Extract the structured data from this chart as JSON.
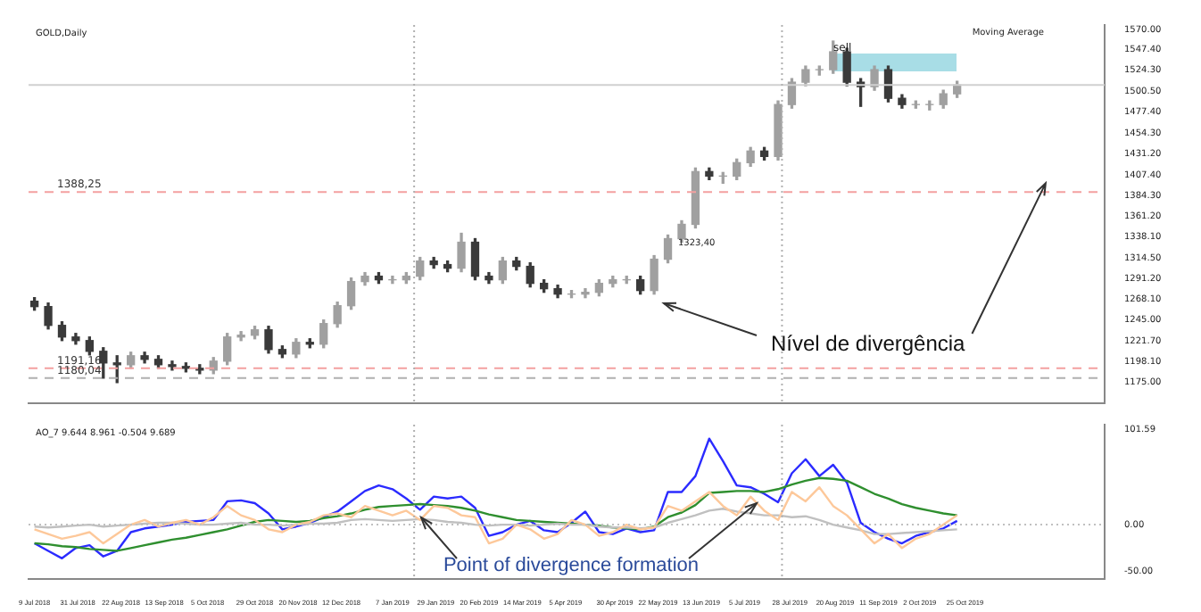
{
  "chart_data": [
    {
      "type": "candlestick",
      "title": "GOLD,Daily",
      "colors": [
        "#3a3a3a",
        "#3a3a3a",
        "#3a3a3a",
        "#3a3a3a",
        "#3a3a3a",
        "#3a3a3a",
        "#3a3a3a",
        "#a0a0a0",
        "#3a3a3a",
        "#3a3a3a",
        "#3a3a3a",
        "#3a3a3a",
        "#3a3a3a",
        "#a0a0a0",
        "#a0a0a0",
        "#a0a0a0",
        "#a0a0a0",
        "#3a3a3a",
        "#3a3a3a",
        "#a0a0a0",
        "#3a3a3a",
        "#a0a0a0",
        "#a0a0a0",
        "#a0a0a0",
        "#a0a0a0",
        "#3a3a3a",
        "#a0a0a0",
        "#a0a0a0",
        "#a0a0a0",
        "#3a3a3a",
        "#3a3a3a",
        "#a0a0a0",
        "#3a3a3a",
        "#3a3a3a",
        "#a0a0a0",
        "#3a3a3a",
        "#3a3a3a",
        "#3a3a3a",
        "#3a3a3a",
        "#a0a0a0",
        "#a0a0a0",
        "#a0a0a0",
        "#a0a0a0",
        "#a0a0a0",
        "#3a3a3a",
        "#a0a0a0",
        "#a0a0a0",
        "#a0a0a0",
        "#a0a0a0",
        "#3a3a3a",
        "#a0a0a0",
        "#a0a0a0",
        "#a0a0a0",
        "#3a3a3a",
        "#a0a0a0",
        "#a0a0a0",
        "#a0a0a0",
        "#a0a0a0",
        "#a0a0a0",
        "#3a3a3a",
        "#3a3a3a",
        "#a0a0a0",
        "#3a3a3a",
        "#3a3a3a",
        "#a0a0a0",
        "#a0a0a0",
        "#a0a0a0",
        "#a0a0a0"
      ],
      "x": [
        "2018-07-09",
        "2018-07-16",
        "2018-07-23",
        "2018-07-30",
        "2018-08-06",
        "2018-08-13",
        "2018-08-20",
        "2018-08-27",
        "2018-09-03",
        "2018-09-10",
        "2018-09-17",
        "2018-09-24",
        "2018-10-01",
        "2018-10-08",
        "2018-10-15",
        "2018-10-22",
        "2018-10-29",
        "2018-11-05",
        "2018-11-12",
        "2018-11-19",
        "2018-11-26",
        "2018-12-03",
        "2018-12-10",
        "2018-12-17",
        "2018-12-24",
        "2018-12-31",
        "2019-01-07",
        "2019-01-14",
        "2019-01-21",
        "2019-01-28",
        "2019-02-04",
        "2019-02-11",
        "2019-02-18",
        "2019-02-25",
        "2019-03-04",
        "2019-03-11",
        "2019-03-18",
        "2019-03-25",
        "2019-04-01",
        "2019-04-08",
        "2019-04-15",
        "2019-04-22",
        "2019-04-29",
        "2019-05-06",
        "2019-05-13",
        "2019-05-20",
        "2019-05-27",
        "2019-06-03",
        "2019-06-10",
        "2019-06-17",
        "2019-06-24",
        "2019-07-01",
        "2019-07-08",
        "2019-07-15",
        "2019-07-22",
        "2019-07-29",
        "2019-08-05",
        "2019-08-12",
        "2019-08-19",
        "2019-08-26",
        "2019-09-02",
        "2019-09-09",
        "2019-09-16",
        "2019-09-23",
        "2019-09-30",
        "2019-10-07",
        "2019-10-14",
        "2019-10-21"
      ],
      "ohlc": [
        [
          1266,
          1270,
          1256,
          1260
        ],
        [
          1260,
          1264,
          1235,
          1239
        ],
        [
          1239,
          1243,
          1222,
          1226
        ],
        [
          1226,
          1230,
          1218,
          1222
        ],
        [
          1222,
          1226,
          1206,
          1210
        ],
        [
          1210,
          1214,
          1180,
          1197
        ],
        [
          1197,
          1205,
          1175,
          1195
        ],
        [
          1195,
          1209,
          1191,
          1205
        ],
        [
          1205,
          1209,
          1197,
          1201
        ],
        [
          1201,
          1205,
          1191,
          1195
        ],
        [
          1195,
          1199,
          1189,
          1193
        ],
        [
          1193,
          1197,
          1187,
          1191
        ],
        [
          1191,
          1195,
          1185,
          1189
        ],
        [
          1189,
          1203,
          1185,
          1199
        ],
        [
          1199,
          1230,
          1195,
          1226
        ],
        [
          1226,
          1232,
          1222,
          1228
        ],
        [
          1228,
          1238,
          1224,
          1234
        ],
        [
          1234,
          1238,
          1208,
          1212
        ],
        [
          1212,
          1216,
          1203,
          1207
        ],
        [
          1207,
          1224,
          1203,
          1220
        ],
        [
          1220,
          1224,
          1214,
          1218
        ],
        [
          1218,
          1245,
          1214,
          1241
        ],
        [
          1241,
          1265,
          1237,
          1261
        ],
        [
          1261,
          1292,
          1257,
          1288
        ],
        [
          1288,
          1298,
          1284,
          1294
        ],
        [
          1294,
          1298,
          1286,
          1290
        ],
        [
          1290,
          1294,
          1286,
          1290
        ],
        [
          1290,
          1298,
          1286,
          1294
        ],
        [
          1294,
          1315,
          1290,
          1311
        ],
        [
          1311,
          1315,
          1303,
          1307
        ],
        [
          1307,
          1311,
          1299,
          1303
        ],
        [
          1303,
          1342,
          1299,
          1332
        ],
        [
          1332,
          1336,
          1290,
          1294
        ],
        [
          1294,
          1298,
          1286,
          1290
        ],
        [
          1290,
          1315,
          1286,
          1311
        ],
        [
          1311,
          1315,
          1301,
          1305
        ],
        [
          1305,
          1309,
          1282,
          1286
        ],
        [
          1286,
          1290,
          1276,
          1280
        ],
        [
          1280,
          1284,
          1270,
          1274
        ],
        [
          1274,
          1278,
          1270,
          1274
        ],
        [
          1274,
          1280,
          1270,
          1276
        ],
        [
          1276,
          1290,
          1272,
          1286
        ],
        [
          1286,
          1294,
          1282,
          1290
        ],
        [
          1290,
          1294,
          1286,
          1290
        ],
        [
          1290,
          1294,
          1274,
          1278
        ],
        [
          1278,
          1317,
          1274,
          1313
        ],
        [
          1313,
          1340,
          1309,
          1336
        ],
        [
          1336,
          1356,
          1332,
          1352
        ],
        [
          1352,
          1415,
          1348,
          1411
        ],
        [
          1411,
          1415,
          1402,
          1406
        ],
        [
          1406,
          1410,
          1398,
          1406
        ],
        [
          1406,
          1425,
          1402,
          1421
        ],
        [
          1421,
          1438,
          1417,
          1434
        ],
        [
          1434,
          1438,
          1424,
          1428
        ],
        [
          1428,
          1490,
          1424,
          1486
        ],
        [
          1486,
          1515,
          1482,
          1511
        ],
        [
          1511,
          1529,
          1507,
          1525
        ],
        [
          1525,
          1529,
          1519,
          1525
        ],
        [
          1525,
          1557,
          1521,
          1545
        ],
        [
          1545,
          1549,
          1507,
          1511
        ],
        [
          1511,
          1515,
          1484,
          1506
        ],
        [
          1506,
          1529,
          1502,
          1525
        ],
        [
          1525,
          1529,
          1489,
          1493
        ],
        [
          1493,
          1497,
          1482,
          1486
        ],
        [
          1486,
          1490,
          1482,
          1486
        ],
        [
          1486,
          1490,
          1480,
          1486
        ],
        [
          1486,
          1502,
          1482,
          1498
        ],
        [
          1498,
          1512,
          1494,
          1508
        ]
      ],
      "xlim": [
        "2018-07-06",
        "2020-01-04"
      ],
      "ylim": [
        1151.9,
        1575
      ],
      "yticks": [
        {
          "value": 1175,
          "label": "1175.00"
        },
        {
          "value": 1198.1,
          "label": "1198.10"
        },
        {
          "value": 1221.7,
          "label": "1221.70"
        },
        {
          "value": 1245,
          "label": "1245.00"
        },
        {
          "value": 1268.1,
          "label": "1268.10"
        },
        {
          "value": 1291.2,
          "label": "1291.20"
        },
        {
          "value": 1314.5,
          "label": "1314.50"
        },
        {
          "value": 1338.1,
          "label": "1338.10"
        },
        {
          "value": 1361.2,
          "label": "1361.20"
        },
        {
          "value": 1384.3,
          "label": "1384.30"
        },
        {
          "value": 1407.4,
          "label": "1407.40"
        },
        {
          "value": 1431.2,
          "label": "1431.20"
        },
        {
          "value": 1454.3,
          "label": "1454.30"
        },
        {
          "value": 1477.4,
          "label": "1477.40"
        },
        {
          "value": 1500.5,
          "label": "1500.50"
        },
        {
          "value": 1524.3,
          "label": "1524.30"
        },
        {
          "value": 1547.4,
          "label": "1547.40"
        },
        {
          "value": 1570,
          "label": "1570.00"
        }
      ],
      "tick_labels": "y",
      "legend": false,
      "grid": false,
      "ref_lines": [
        {
          "axis": "y",
          "value": 1388.25,
          "label": "1388,25",
          "color": "#f4a0a0",
          "line_style": "dashed"
        },
        {
          "axis": "y",
          "value": 1191.16,
          "label": "1191,16",
          "color": "#f4a0a0",
          "line_style": "dashed"
        },
        {
          "axis": "y",
          "value": 1180.04,
          "label": "1180,04",
          "color": "#b0b0b0",
          "line_style": "dashed"
        },
        {
          "axis": "y",
          "value": 1508,
          "color": "#d0d0d0",
          "line_style": "solid"
        },
        {
          "axis": "x",
          "value": "2019-01-18",
          "color": "#b0b0b0",
          "line_style": "dotted"
        },
        {
          "axis": "x",
          "value": "2019-07-24",
          "color": "#b0b0b0",
          "line_style": "dotted"
        }
      ],
      "annotations": [
        "Moving Average",
        "1323,40",
        "sell",
        {
          "text": "Nível de divergência",
          "x": "2019-12-05",
          "y": 1398
        }
      ]
    },
    {
      "type": "line",
      "title": "AO_7 9.644 8.961 -0.504 9.689",
      "x": [
        "2018-07-09",
        "2018-07-16",
        "2018-07-23",
        "2018-07-30",
        "2018-08-06",
        "2018-08-13",
        "2018-08-20",
        "2018-08-27",
        "2018-09-03",
        "2018-09-10",
        "2018-09-17",
        "2018-09-24",
        "2018-10-01",
        "2018-10-08",
        "2018-10-15",
        "2018-10-22",
        "2018-10-29",
        "2018-11-05",
        "2018-11-12",
        "2018-11-19",
        "2018-11-26",
        "2018-12-03",
        "2018-12-10",
        "2018-12-17",
        "2018-12-24",
        "2018-12-31",
        "2019-01-07",
        "2019-01-14",
        "2019-01-21",
        "2019-01-28",
        "2019-02-04",
        "2019-02-11",
        "2019-02-18",
        "2019-02-25",
        "2019-03-04",
        "2019-03-11",
        "2019-03-18",
        "2019-03-25",
        "2019-04-01",
        "2019-04-08",
        "2019-04-15",
        "2019-04-22",
        "2019-04-29",
        "2019-05-06",
        "2019-05-13",
        "2019-05-20",
        "2019-05-27",
        "2019-06-03",
        "2019-06-10",
        "2019-06-17",
        "2019-06-24",
        "2019-07-01",
        "2019-07-08",
        "2019-07-15",
        "2019-07-22",
        "2019-07-29",
        "2019-08-05",
        "2019-08-12",
        "2019-08-19",
        "2019-08-26",
        "2019-09-02",
        "2019-09-09",
        "2019-09-16",
        "2019-09-23",
        "2019-09-30",
        "2019-10-07",
        "2019-10-14",
        "2019-10-21"
      ],
      "series": [
        {
          "color": "#fdc89a",
          "values": [
            -5,
            -10,
            -15,
            -12,
            -8,
            -20,
            -10,
            0,
            5,
            -2,
            2,
            5,
            0,
            8,
            20,
            10,
            5,
            -5,
            -8,
            0,
            3,
            10,
            12,
            8,
            20,
            15,
            10,
            15,
            5,
            20,
            18,
            10,
            8,
            -20,
            -15,
            0,
            -5,
            -15,
            -10,
            5,
            0,
            -12,
            -8,
            0,
            -5,
            -3,
            20,
            15,
            25,
            35,
            20,
            10,
            30,
            15,
            5,
            35,
            25,
            40,
            20,
            10,
            -5,
            -20,
            -10,
            -25,
            -15,
            -10,
            0,
            10
          ]
        },
        {
          "color": "#c0c0c0",
          "values": [
            -2,
            -3,
            -2,
            -1,
            0,
            -2,
            -1,
            0,
            1,
            2,
            2,
            1,
            0,
            0,
            1,
            2,
            0,
            0,
            -1,
            0,
            1,
            1,
            2,
            5,
            6,
            5,
            4,
            5,
            6,
            5,
            3,
            2,
            0,
            -1,
            0,
            0,
            -1,
            0,
            1,
            0,
            0,
            -2,
            -3,
            -3,
            -4,
            -3,
            2,
            6,
            10,
            15,
            17,
            14,
            12,
            10,
            10,
            8,
            9,
            5,
            0,
            -3,
            -6,
            -10,
            -10,
            -9,
            -8,
            -7,
            -6,
            -5
          ]
        },
        {
          "color": "#2f8f2f",
          "values": [
            -20,
            -21,
            -23,
            -24,
            -26,
            -27,
            -28,
            -25,
            -22,
            -19,
            -16,
            -14,
            -11,
            -8,
            -5,
            -1,
            3,
            5,
            4,
            3,
            4,
            7,
            9,
            12,
            16,
            19,
            20,
            21,
            22,
            21,
            20,
            18,
            15,
            11,
            8,
            5,
            4,
            3,
            2,
            1,
            0,
            -1,
            -3,
            -4,
            -5,
            -2,
            8,
            13,
            21,
            34,
            35,
            36,
            36,
            35,
            38,
            43,
            47,
            50,
            49,
            47,
            40,
            33,
            28,
            22,
            18,
            15,
            12,
            10
          ]
        },
        {
          "color": "#2b2bff",
          "values": [
            -20,
            -28,
            -36,
            -25,
            -22,
            -34,
            -28,
            -8,
            -4,
            -2,
            0,
            3,
            4,
            5,
            25,
            26,
            23,
            12,
            -5,
            -2,
            2,
            8,
            14,
            25,
            36,
            42,
            38,
            28,
            16,
            30,
            28,
            30,
            18,
            -12,
            -8,
            0,
            4,
            -6,
            -8,
            2,
            14,
            -8,
            -10,
            -4,
            -8,
            -6,
            35,
            35,
            52,
            92,
            68,
            42,
            40,
            33,
            24,
            55,
            70,
            52,
            64,
            45,
            2,
            -8,
            -15,
            -20,
            -12,
            -8,
            -4,
            4
          ]
        }
      ],
      "xlim": [
        "2018-07-06",
        "2020-01-04"
      ],
      "xticks": [
        {
          "value": "2018-07-09",
          "label": "9 Jul 2018"
        },
        {
          "value": "2018-07-31",
          "label": "31 Jul 2018"
        },
        {
          "value": "2018-08-22",
          "label": "22 Aug 2018"
        },
        {
          "value": "2018-09-13",
          "label": "13 Sep 2018"
        },
        {
          "value": "2018-10-05",
          "label": "5 Oct 2018"
        },
        {
          "value": "2018-10-29",
          "label": "29 Oct 2018"
        },
        {
          "value": "2018-11-20",
          "label": "20 Nov 2018"
        },
        {
          "value": "2018-12-12",
          "label": "12 Dec 2018"
        },
        {
          "value": "2019-01-07",
          "label": "7 Jan 2019"
        },
        {
          "value": "2019-01-29",
          "label": "29 Jan 2019"
        },
        {
          "value": "2019-02-20",
          "label": "20 Feb 2019"
        },
        {
          "value": "2019-03-14",
          "label": "14 Mar 2019"
        },
        {
          "value": "2019-04-05",
          "label": "5 Apr 2019"
        },
        {
          "value": "2019-04-30",
          "label": "30 Apr 2019"
        },
        {
          "value": "2019-05-22",
          "label": "22 May 2019"
        },
        {
          "value": "2019-06-13",
          "label": "13 Jun 2019"
        },
        {
          "value": "2019-07-05",
          "label": "5 Jul 2019"
        },
        {
          "value": "2019-07-28",
          "label": "28 Jul 2019"
        },
        {
          "value": "2019-08-20",
          "label": "20 Aug 2019"
        },
        {
          "value": "2019-09-11",
          "label": "11 Sep 2019"
        },
        {
          "value": "2019-10-02",
          "label": "2 Oct 2019"
        },
        {
          "value": "2019-10-25",
          "label": "25 Oct 2019"
        }
      ],
      "ylim": [
        -58,
        107
      ],
      "yticks": [
        {
          "value": 101.59,
          "label": "101.59"
        },
        {
          "value": 0,
          "label": "0.00"
        },
        {
          "value": -50,
          "label": "-50.00"
        }
      ],
      "legend": false,
      "grid": false,
      "line_style": "solid",
      "marker": "none",
      "ref_lines": [
        {
          "axis": "y",
          "value": 0,
          "color": "#c0c0c0",
          "line_style": "dotted"
        },
        {
          "axis": "x",
          "value": "2019-01-18",
          "color": "#b0b0b0",
          "line_style": "dotted"
        },
        {
          "axis": "x",
          "value": "2019-07-24",
          "color": "#b0b0b0",
          "line_style": "dotted"
        }
      ],
      "annotations": [
        "Point of divergence formation"
      ]
    }
  ]
}
